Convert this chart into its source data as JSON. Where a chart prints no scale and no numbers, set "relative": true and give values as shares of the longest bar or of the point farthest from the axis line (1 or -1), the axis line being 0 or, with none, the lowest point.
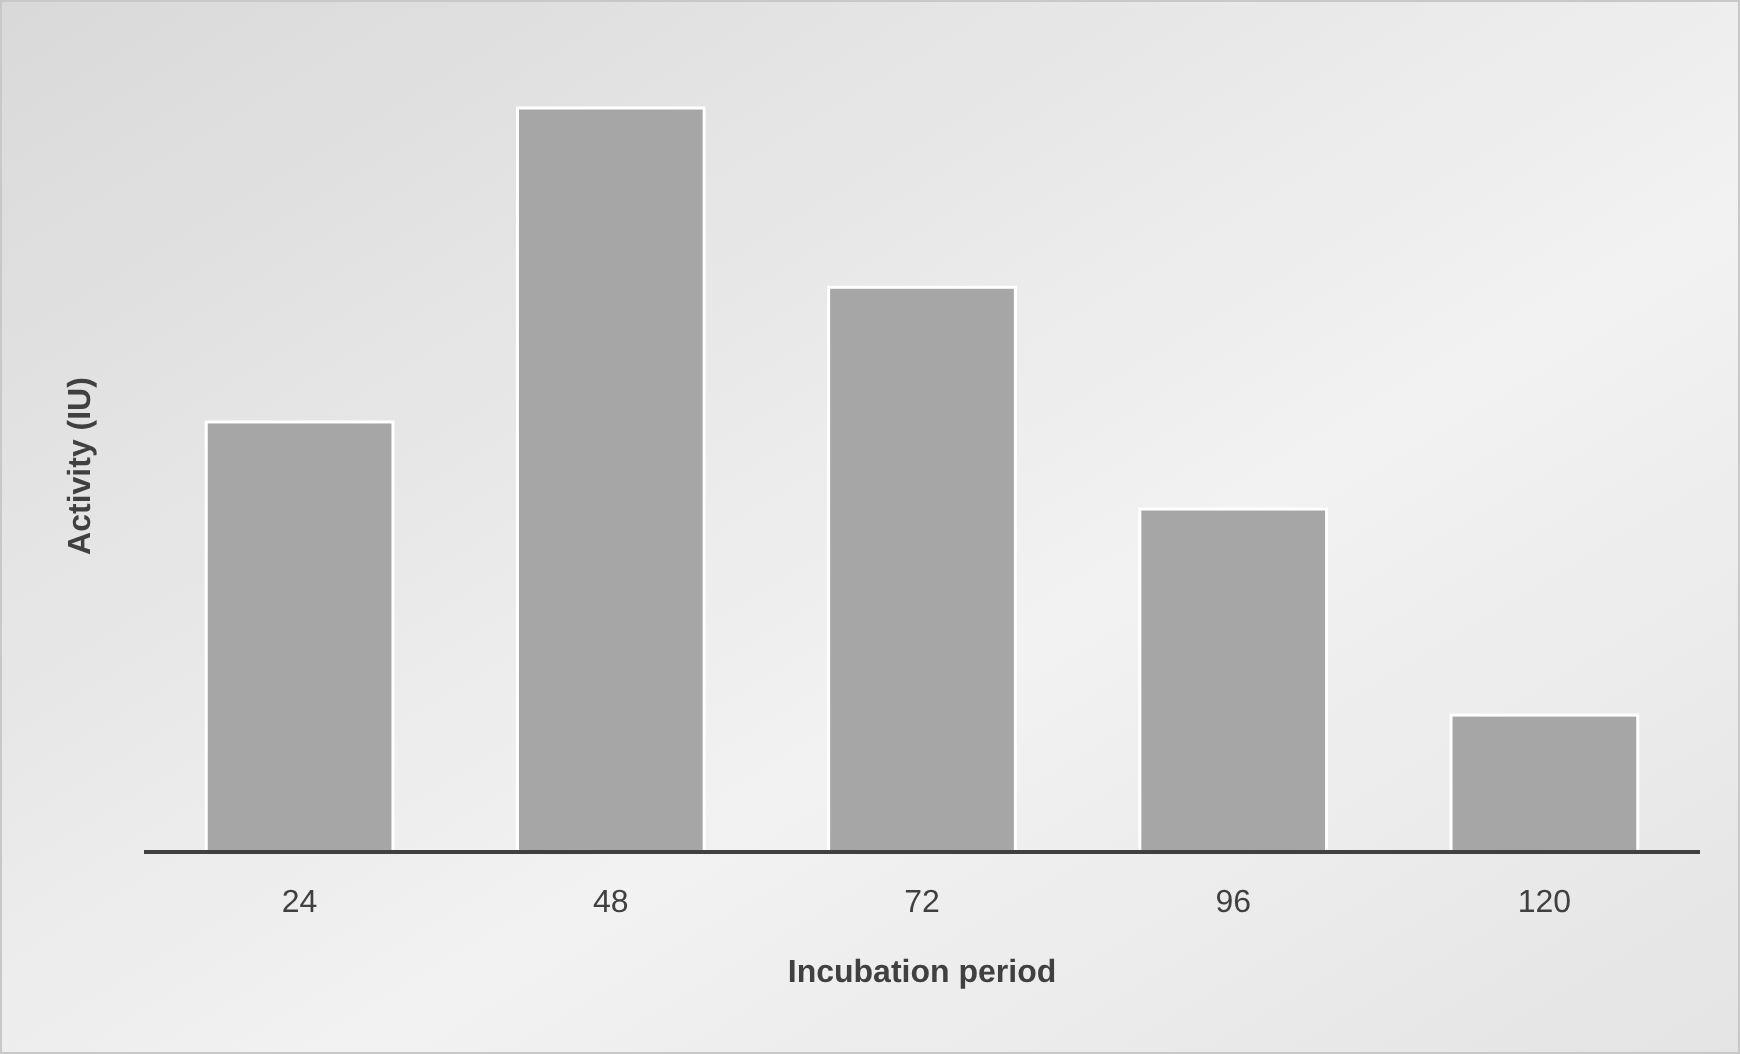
{
  "chart_data": {
    "type": "bar",
    "relative": true,
    "xlabel": "Incubation period",
    "ylabel": "Activity (IU)",
    "categories": [
      "24",
      "48",
      "72",
      "96",
      "120"
    ],
    "values": [
      0.578,
      1,
      0.759,
      0.461,
      0.184
    ],
    "color": "#a6a6a6"
  }
}
